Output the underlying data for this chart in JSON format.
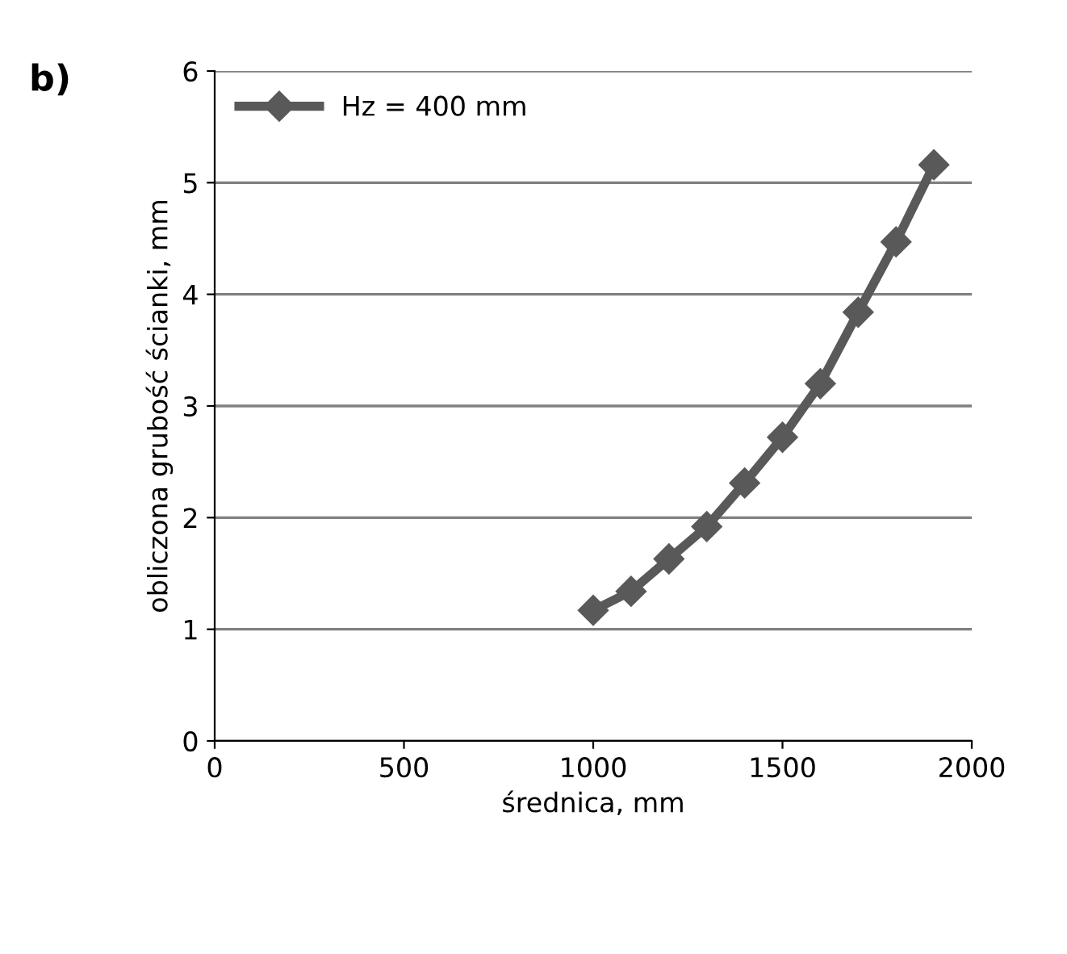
{
  "chart_data": {
    "type": "line",
    "xlabel": "średnica, mm",
    "ylabel": "obliczona grubość ścianki, mm",
    "annotations": [
      "b)"
    ],
    "x": [
      1000,
      1100,
      1200,
      1300,
      1400,
      1500,
      1600,
      1700,
      1800,
      1900
    ],
    "series": [
      {
        "name": "Hz = 400 mm",
        "color": "#595959",
        "values": [
          1.17,
          1.34,
          1.63,
          1.92,
          2.31,
          2.72,
          3.2,
          3.84,
          4.47,
          5.16
        ]
      }
    ],
    "xlim": [
      0,
      2000
    ],
    "xticks": [
      0,
      500,
      1000,
      1500,
      2000
    ],
    "ylim": [
      0,
      6
    ],
    "yticks": [
      0,
      1,
      2,
      3,
      4,
      5,
      6
    ],
    "grid": "y",
    "legend": "top left",
    "marker": "diamond",
    "line_style": "solid"
  }
}
